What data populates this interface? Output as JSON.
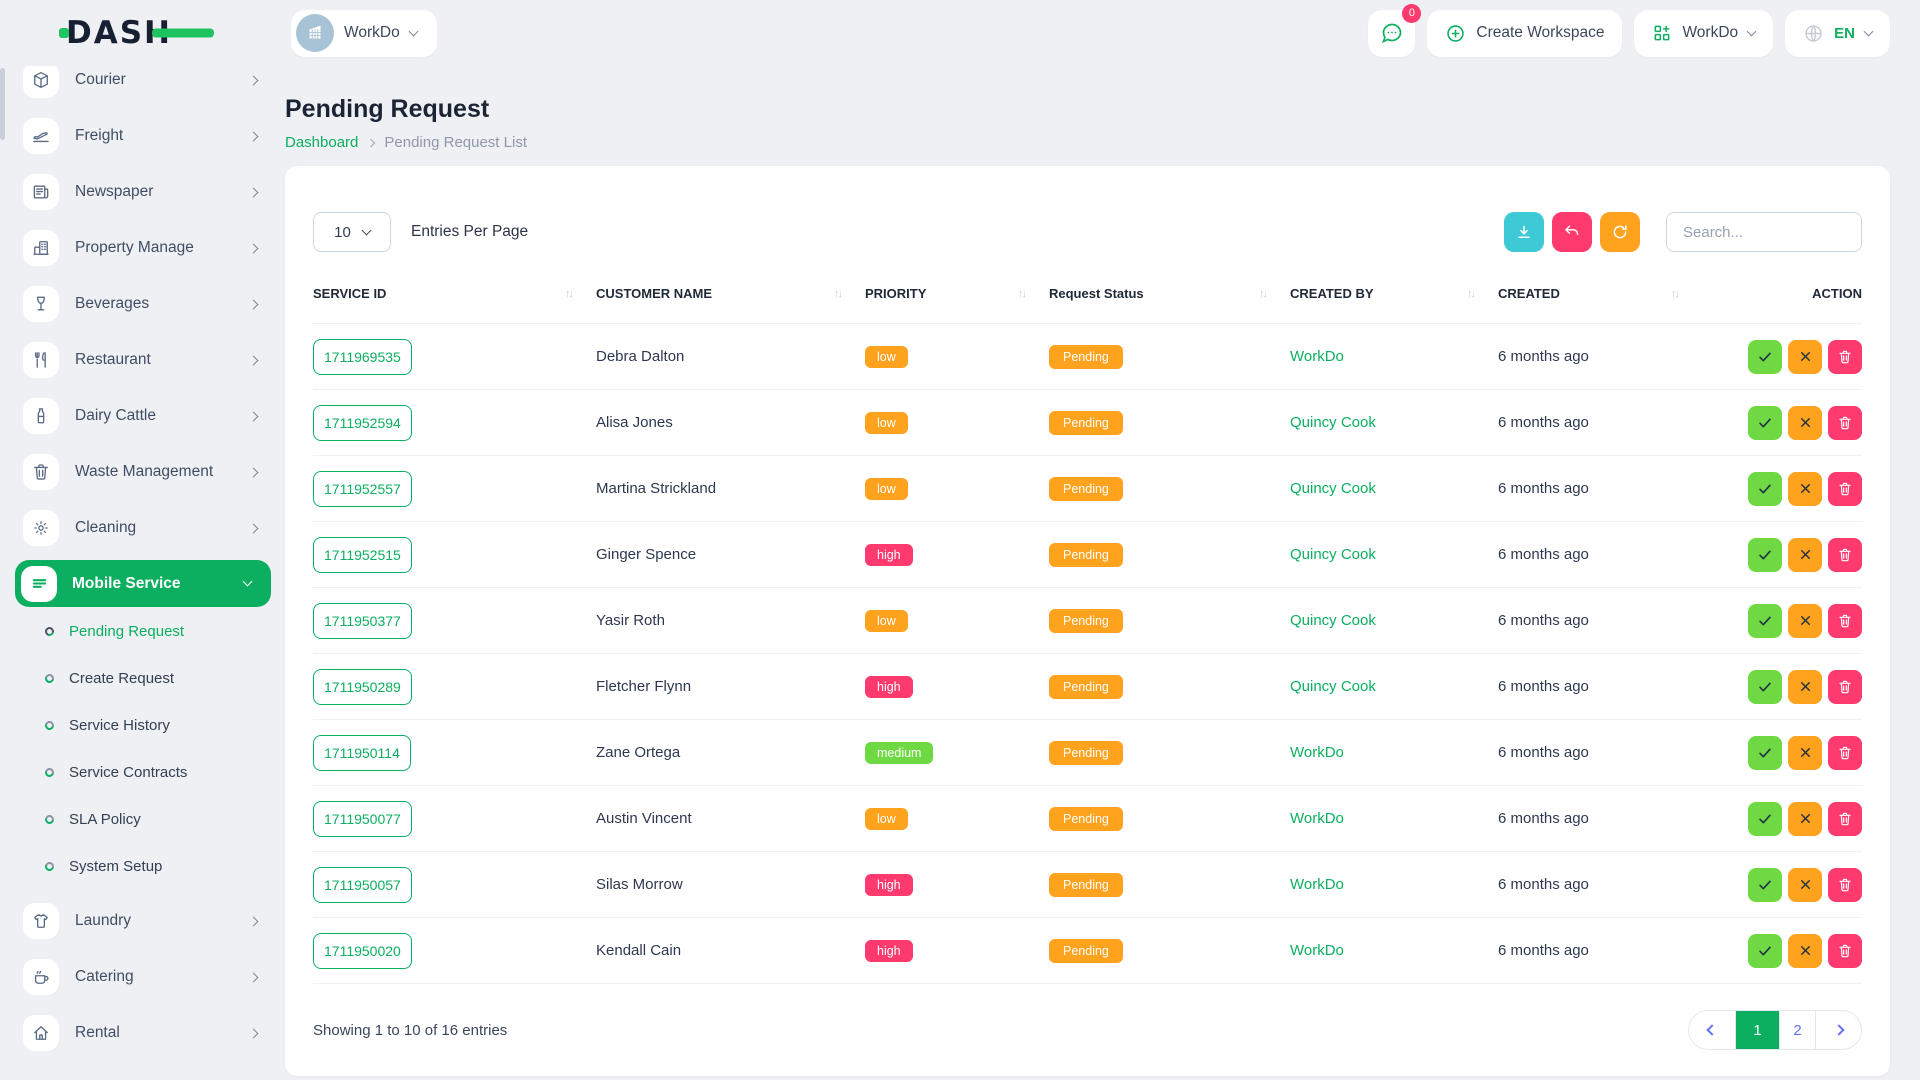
{
  "header": {
    "logo": "DASH",
    "workspace_name": "WorkDo",
    "chat_badge": "0",
    "create_workspace": "Create Workspace",
    "account_menu": "WorkDo",
    "language": "EN"
  },
  "sidebar": {
    "items": [
      {
        "label": "Courier",
        "icon": "package-icon"
      },
      {
        "label": "Freight",
        "icon": "plane-icon"
      },
      {
        "label": "Newspaper",
        "icon": "newspaper-icon"
      },
      {
        "label": "Property Manage",
        "icon": "building-icon"
      },
      {
        "label": "Beverages",
        "icon": "wine-glass-icon"
      },
      {
        "label": "Restaurant",
        "icon": "cutlery-icon"
      },
      {
        "label": "Dairy Cattle",
        "icon": "milk-bottle-icon"
      },
      {
        "label": "Waste Management",
        "icon": "trash-icon"
      },
      {
        "label": "Cleaning",
        "icon": "sun-icon"
      },
      {
        "label": "Mobile Service",
        "icon": "menu-icon",
        "active": true,
        "submenu": [
          {
            "label": "Pending Request",
            "active": true
          },
          {
            "label": "Create Request"
          },
          {
            "label": "Service History"
          },
          {
            "label": "Service Contracts"
          },
          {
            "label": "SLA Policy"
          },
          {
            "label": "System Setup"
          }
        ]
      },
      {
        "label": "Laundry",
        "icon": "shirt-icon"
      },
      {
        "label": "Catering",
        "icon": "coffee-cup-icon"
      },
      {
        "label": "Rental",
        "icon": "home-icon"
      }
    ]
  },
  "page": {
    "title": "Pending Request",
    "breadcrumb_home": "Dashboard",
    "breadcrumb_current": "Pending Request List"
  },
  "toolbar": {
    "entries_value": "10",
    "entries_label": "Entries Per Page",
    "search_placeholder": "Search..."
  },
  "table": {
    "columns": [
      {
        "label": "SERVICE ID",
        "sortable": true
      },
      {
        "label": "CUSTOMER NAME",
        "sortable": true
      },
      {
        "label": "PRIORITY",
        "sortable": true
      },
      {
        "label": "Request Status",
        "sortable": true
      },
      {
        "label": "CREATED BY",
        "sortable": true
      },
      {
        "label": "CREATED",
        "sortable": true
      },
      {
        "label": "ACTION",
        "sortable": false
      }
    ],
    "rows": [
      {
        "service_id": "1711969535",
        "customer": "Debra Dalton",
        "priority": "low",
        "status": "Pending",
        "created_by": "WorkDo",
        "created": "6 months ago"
      },
      {
        "service_id": "1711952594",
        "customer": "Alisa Jones",
        "priority": "low",
        "status": "Pending",
        "created_by": "Quincy Cook",
        "created": "6 months ago"
      },
      {
        "service_id": "1711952557",
        "customer": "Martina Strickland",
        "priority": "low",
        "status": "Pending",
        "created_by": "Quincy Cook",
        "created": "6 months ago"
      },
      {
        "service_id": "1711952515",
        "customer": "Ginger Spence",
        "priority": "high",
        "status": "Pending",
        "created_by": "Quincy Cook",
        "created": "6 months ago"
      },
      {
        "service_id": "1711950377",
        "customer": "Yasir Roth",
        "priority": "low",
        "status": "Pending",
        "created_by": "Quincy Cook",
        "created": "6 months ago"
      },
      {
        "service_id": "1711950289",
        "customer": "Fletcher Flynn",
        "priority": "high",
        "status": "Pending",
        "created_by": "Quincy Cook",
        "created": "6 months ago"
      },
      {
        "service_id": "1711950114",
        "customer": "Zane Ortega",
        "priority": "medium",
        "status": "Pending",
        "created_by": "WorkDo",
        "created": "6 months ago"
      },
      {
        "service_id": "1711950077",
        "customer": "Austin Vincent",
        "priority": "low",
        "status": "Pending",
        "created_by": "WorkDo",
        "created": "6 months ago"
      },
      {
        "service_id": "1711950057",
        "customer": "Silas Morrow",
        "priority": "high",
        "status": "Pending",
        "created_by": "WorkDo",
        "created": "6 months ago"
      },
      {
        "service_id": "1711950020",
        "customer": "Kendall Cain",
        "priority": "high",
        "status": "Pending",
        "created_by": "WorkDo",
        "created": "6 months ago"
      }
    ]
  },
  "footer": {
    "showing": "Showing 1 to 10 of 16 entries",
    "pages": [
      "1",
      "2"
    ],
    "active_page": "1"
  },
  "colors": {
    "primary_green": "#0CAF60",
    "light_green": "#6FD944",
    "orange": "#FFA21D",
    "pink": "#FF3A6E",
    "cyan": "#3EC9D6",
    "indigo": "#6571FF"
  }
}
